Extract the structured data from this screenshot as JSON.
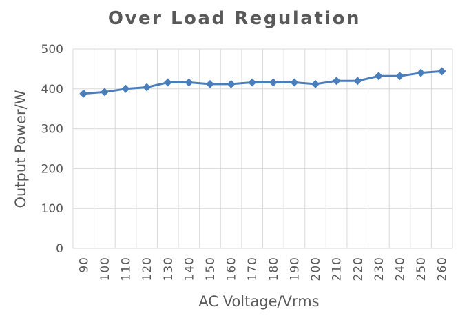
{
  "chart_data": {
    "type": "line",
    "title": "Over Load Regulation",
    "xlabel": "AC Voltage/Vrms",
    "ylabel": "Output Power/W",
    "categories": [
      "90",
      "100",
      "110",
      "120",
      "130",
      "140",
      "150",
      "160",
      "170",
      "180",
      "190",
      "200",
      "210",
      "220",
      "230",
      "240",
      "250",
      "260"
    ],
    "series": [
      {
        "values": [
          388,
          392,
          400,
          404,
          416,
          416,
          412,
          412,
          416,
          416,
          416,
          412,
          420,
          420,
          432,
          432,
          440,
          444
        ]
      }
    ],
    "ylim": [
      0,
      500
    ],
    "yticks": [
      0,
      100,
      200,
      300,
      400,
      500
    ],
    "grid": true,
    "legend": "none",
    "line_color": "#4a7ebb",
    "grid_color": "#d9d9d9"
  }
}
